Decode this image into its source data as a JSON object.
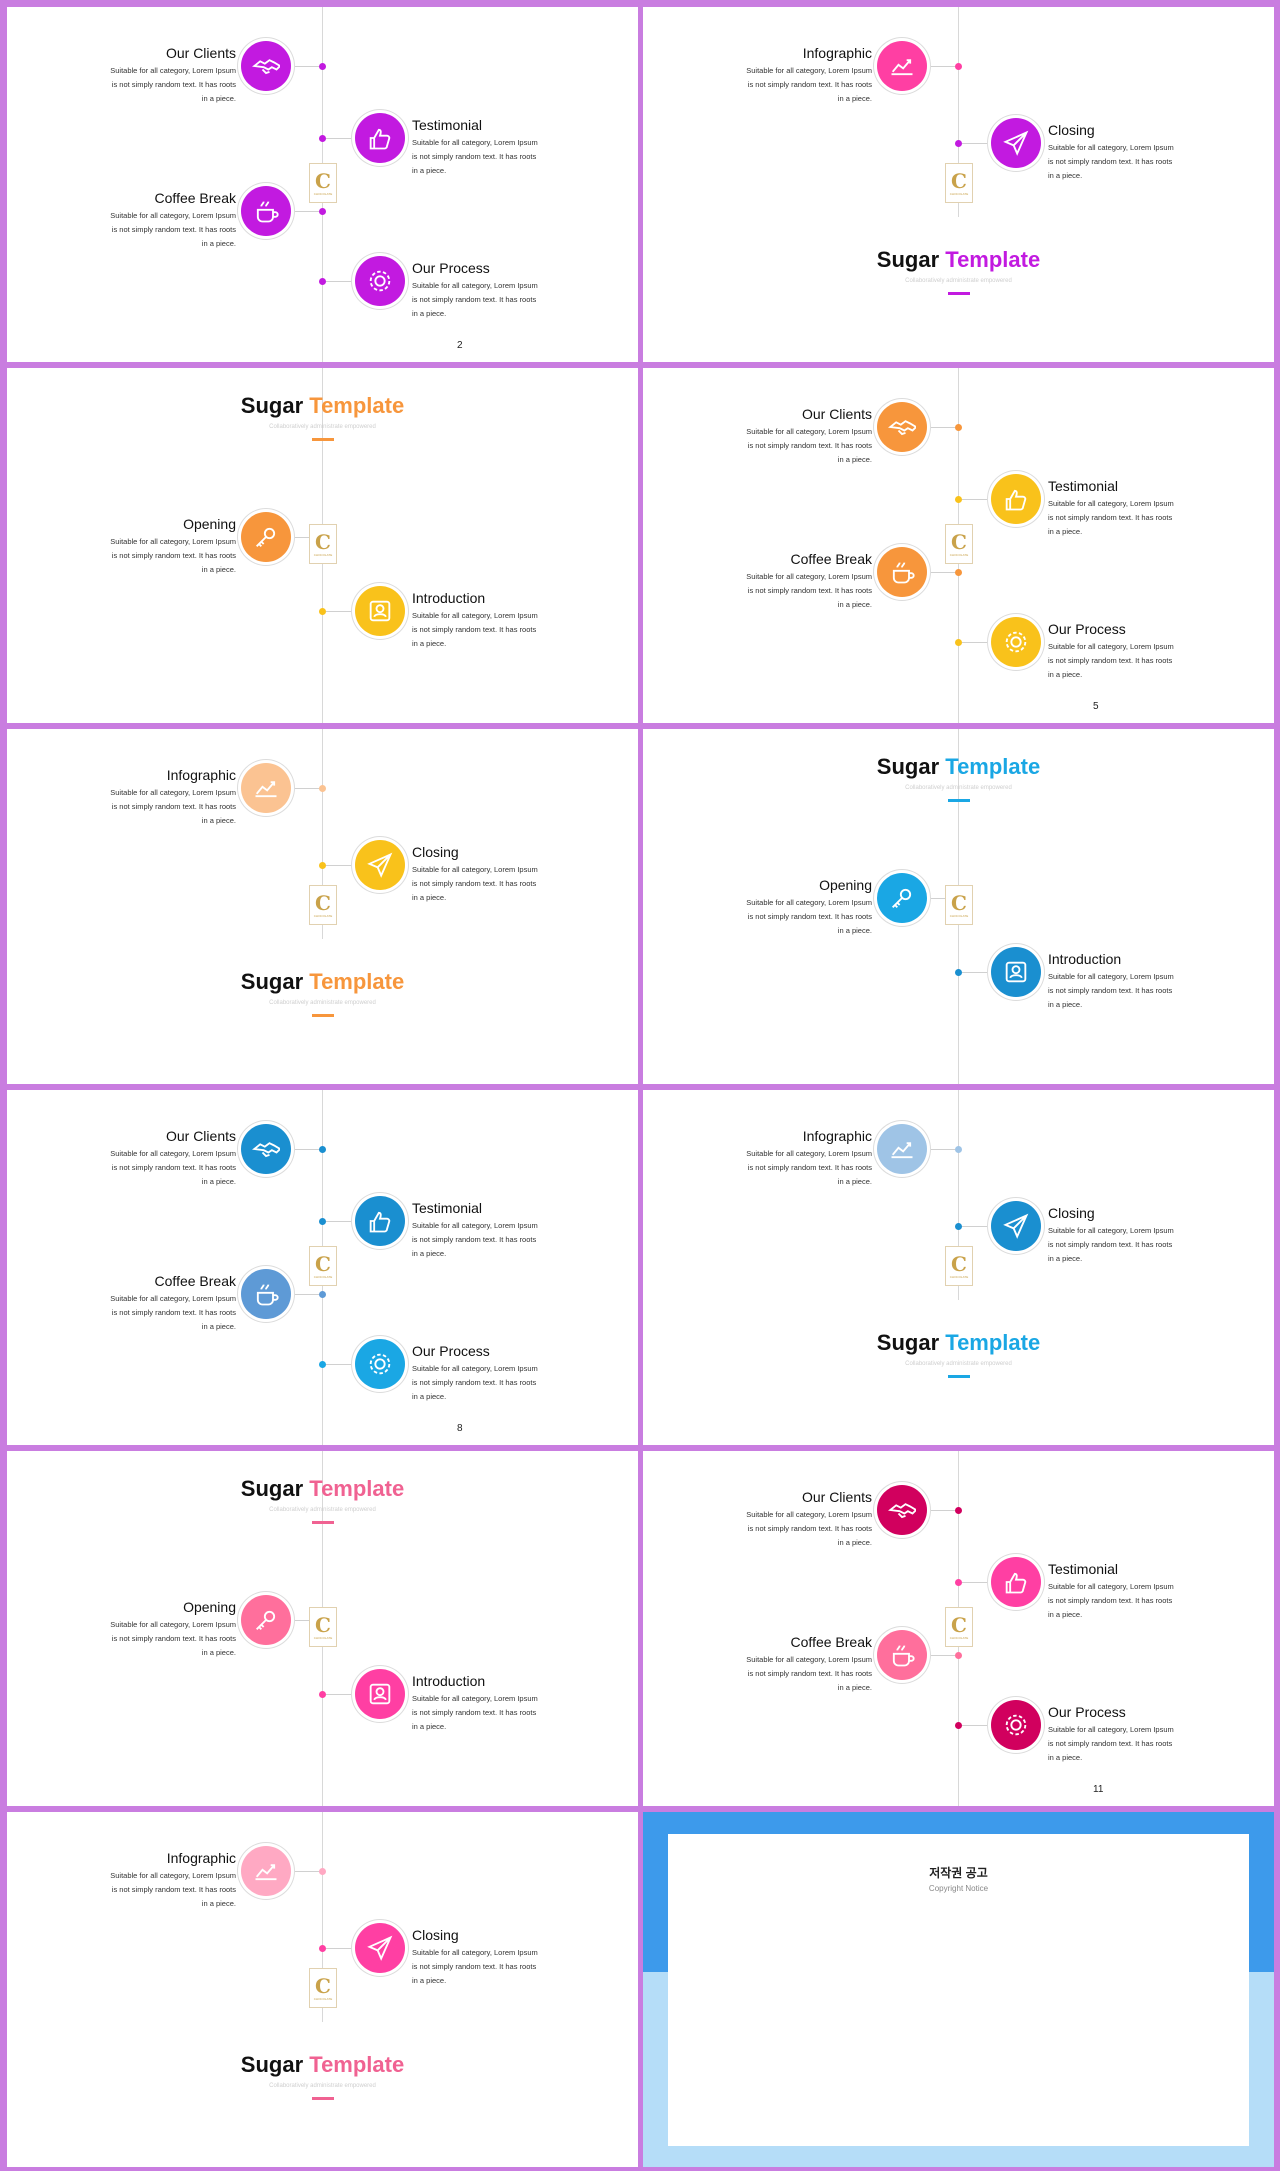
{
  "brand_letter": "C",
  "brand_mark_text": "CHOCOLATE",
  "title_first": "Sugar",
  "title_second": "Template",
  "subtitle": "Collaboratively administrate empowered",
  "body_lines": [
    "Suitable for all category, Lorem Ipsum",
    "is not simply random  text. It has roots",
    "in a piece."
  ],
  "items": {
    "clients": "Our Clients",
    "testimonial": "Testimonial",
    "coffee": "Coffee Break",
    "process": "Our Process",
    "infographic": "Infographic",
    "closing": "Closing",
    "opening": "Opening",
    "introduction": "Introduction"
  },
  "page_numbers": {
    "s2": "2",
    "s5": "5",
    "s8": "8",
    "s11": "11"
  },
  "copyright": {
    "title": "저작권 공고",
    "subtitle": "Copyright Notice",
    "paragraphs": [
      "",
      "",
      "",
      "",
      ""
    ]
  },
  "colors": {
    "purple": "#c21ae0",
    "orange": "#f7963c",
    "yellow": "#f9c21b",
    "cyan": "#1aa7e4",
    "blue": "#1a8fd0",
    "pink": "#ff3fa3",
    "crimson": "#d1005e",
    "peach": "#fbc392",
    "lightblue": "#9fc4e6",
    "lightpink": "#ffa9c3"
  }
}
